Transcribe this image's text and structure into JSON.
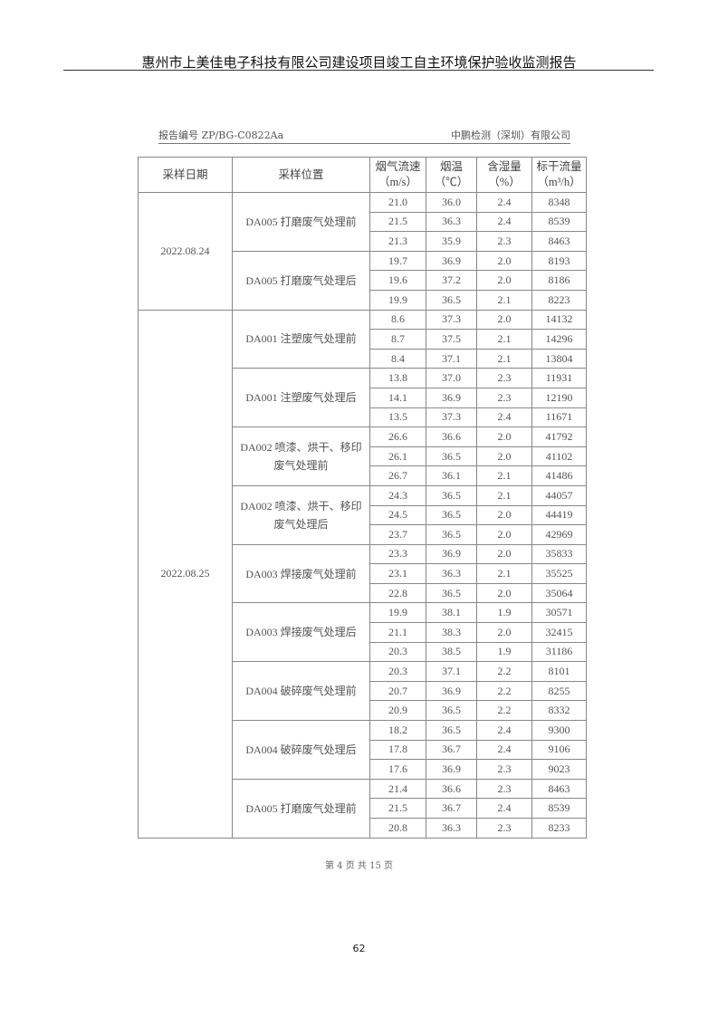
{
  "document_title": "惠州市上美佳电子科技有限公司建设项目竣工自主环境保护验收监测报告",
  "report_no": "报告编号 ZP/BG-C0822Aa",
  "company": "中鹏检测（深圳）有限公司",
  "table": {
    "headers": [
      {
        "line1": "采样日期",
        "line2": ""
      },
      {
        "line1": "采样位置",
        "line2": ""
      },
      {
        "line1": "烟气流速",
        "line2": "（m/s）"
      },
      {
        "line1": "烟温",
        "line2": "（℃）"
      },
      {
        "line1": "含湿量",
        "line2": "（%）"
      },
      {
        "line1": "标干流量",
        "line2": "（m³/h）"
      }
    ],
    "dates": [
      {
        "date": "2022.08.24",
        "groups": [
          {
            "location": "DA005 打磨废气处理前",
            "rows": [
              [
                "21.0",
                "36.0",
                "2.4",
                "8348"
              ],
              [
                "21.5",
                "36.3",
                "2.4",
                "8539"
              ],
              [
                "21.3",
                "35.9",
                "2.3",
                "8463"
              ]
            ]
          },
          {
            "location": "DA005 打磨废气处理后",
            "rows": [
              [
                "19.7",
                "36.9",
                "2.0",
                "8193"
              ],
              [
                "19.6",
                "37.2",
                "2.0",
                "8186"
              ],
              [
                "19.9",
                "36.5",
                "2.1",
                "8223"
              ]
            ]
          }
        ]
      },
      {
        "date": "2022.08.25",
        "groups": [
          {
            "location": "DA001 注塑废气处理前",
            "rows": [
              [
                "8.6",
                "37.3",
                "2.0",
                "14132"
              ],
              [
                "8.7",
                "37.5",
                "2.1",
                "14296"
              ],
              [
                "8.4",
                "37.1",
                "2.1",
                "13804"
              ]
            ]
          },
          {
            "location": "DA001 注塑废气处理后",
            "rows": [
              [
                "13.8",
                "37.0",
                "2.3",
                "11931"
              ],
              [
                "14.1",
                "36.9",
                "2.3",
                "12190"
              ],
              [
                "13.5",
                "37.3",
                "2.4",
                "11671"
              ]
            ]
          },
          {
            "location": "DA002 喷漆、烘干、移印废气处理前",
            "rows": [
              [
                "26.6",
                "36.6",
                "2.0",
                "41792"
              ],
              [
                "26.1",
                "36.5",
                "2.0",
                "41102"
              ],
              [
                "26.7",
                "36.1",
                "2.1",
                "41486"
              ]
            ]
          },
          {
            "location": "DA002 喷漆、烘干、移印废气处理后",
            "rows": [
              [
                "24.3",
                "36.5",
                "2.1",
                "44057"
              ],
              [
                "24.5",
                "36.5",
                "2.0",
                "44419"
              ],
              [
                "23.7",
                "36.5",
                "2.0",
                "42969"
              ]
            ]
          },
          {
            "location": "DA003 焊接废气处理前",
            "rows": [
              [
                "23.3",
                "36.9",
                "2.0",
                "35833"
              ],
              [
                "23.1",
                "36.3",
                "2.1",
                "35525"
              ],
              [
                "22.8",
                "36.5",
                "2.0",
                "35064"
              ]
            ]
          },
          {
            "location": "DA003 焊接废气处理后",
            "rows": [
              [
                "19.9",
                "38.1",
                "1.9",
                "30571"
              ],
              [
                "21.1",
                "38.3",
                "2.0",
                "32415"
              ],
              [
                "20.3",
                "38.5",
                "1.9",
                "31186"
              ]
            ]
          },
          {
            "location": "DA004 破碎废气处理前",
            "rows": [
              [
                "20.3",
                "37.1",
                "2.2",
                "8101"
              ],
              [
                "20.7",
                "36.9",
                "2.2",
                "8255"
              ],
              [
                "20.9",
                "36.5",
                "2.2",
                "8332"
              ]
            ]
          },
          {
            "location": "DA004 破碎废气处理后",
            "rows": [
              [
                "18.2",
                "36.5",
                "2.4",
                "9300"
              ],
              [
                "17.8",
                "36.7",
                "2.4",
                "9106"
              ],
              [
                "17.6",
                "36.9",
                "2.3",
                "9023"
              ]
            ]
          },
          {
            "location": "DA005 打磨废气处理前",
            "rows": [
              [
                "21.4",
                "36.6",
                "2.3",
                "8463"
              ],
              [
                "21.5",
                "36.7",
                "2.4",
                "8539"
              ],
              [
                "20.8",
                "36.3",
                "2.3",
                "8233"
              ]
            ]
          }
        ]
      }
    ]
  },
  "scan_footer": "第 4 页 共 15 页",
  "page_number": "62"
}
